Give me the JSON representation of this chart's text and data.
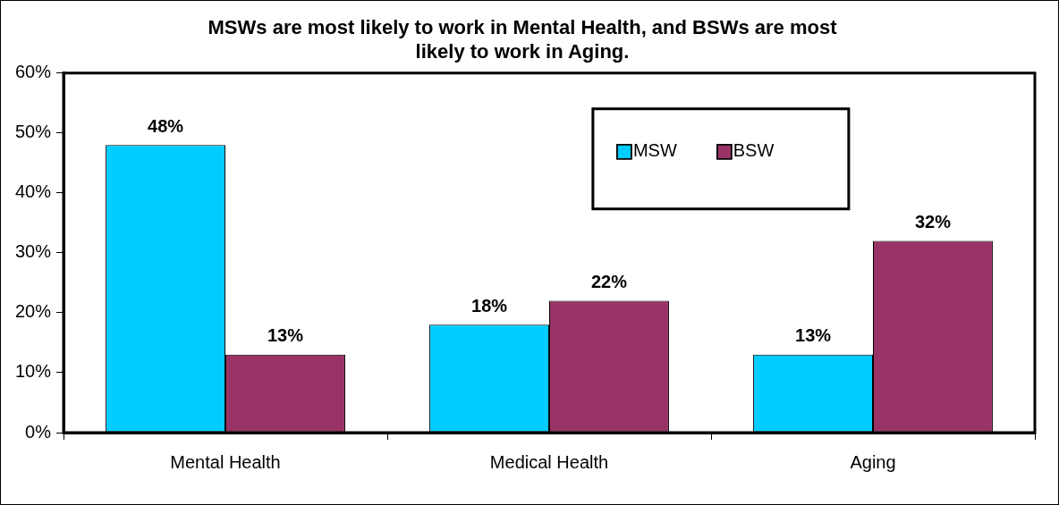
{
  "chart_data": {
    "type": "bar",
    "title": "MSWs are most likely to work in Mental Health, and BSWs are most likely to work in Aging.",
    "categories": [
      "Mental Health",
      "Medical Health",
      "Aging"
    ],
    "series": [
      {
        "name": "MSW",
        "color": "#00ccff",
        "values": [
          48,
          18,
          13
        ],
        "value_labels": [
          "48%",
          "18%",
          "13%"
        ]
      },
      {
        "name": "BSW",
        "color": "#993366",
        "values": [
          13,
          22,
          32
        ],
        "value_labels": [
          "13%",
          "22%",
          "32%"
        ]
      }
    ],
    "ylim": [
      0,
      60
    ],
    "yticks": [
      {
        "value": 0,
        "label": "0%"
      },
      {
        "value": 10,
        "label": "10%"
      },
      {
        "value": 20,
        "label": "20%"
      },
      {
        "value": 30,
        "label": "30%"
      },
      {
        "value": 40,
        "label": "40%"
      },
      {
        "value": 50,
        "label": "50%"
      },
      {
        "value": 60,
        "label": "60%"
      }
    ],
    "grid": false,
    "legend": "top right"
  }
}
